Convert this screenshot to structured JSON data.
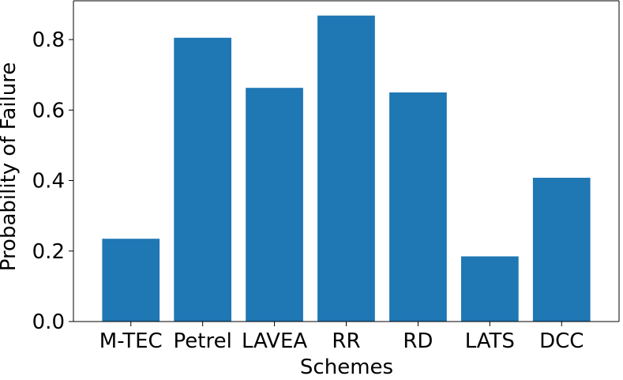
{
  "chart_data": {
    "type": "bar",
    "title": "",
    "xlabel": "Schemes",
    "ylabel": "Probability of Failure",
    "categories": [
      "M-TEC",
      "Petrel",
      "LAVEA",
      "RR",
      "RD",
      "LATS",
      "DCC"
    ],
    "values": [
      0.235,
      0.805,
      0.663,
      0.868,
      0.65,
      0.185,
      0.408
    ],
    "ylim": [
      0,
      0.91
    ],
    "yticks": [
      0.0,
      0.2,
      0.4,
      0.6,
      0.8
    ],
    "ytick_labels": [
      "0.0",
      "0.2",
      "0.4",
      "0.6",
      "0.8"
    ],
    "grid": false,
    "legend": "none",
    "bar_color": "#1f77b4"
  }
}
